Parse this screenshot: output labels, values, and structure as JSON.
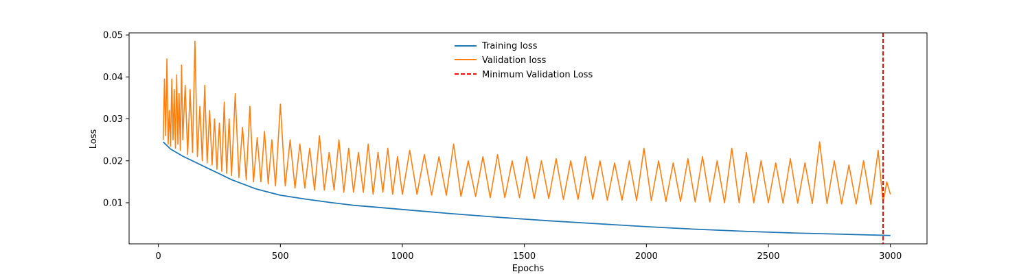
{
  "chart_data": {
    "type": "line",
    "title": "",
    "xlabel": "Epochs",
    "ylabel": "Loss",
    "xlim": [
      -120,
      3150
    ],
    "ylim": [
      0.0002,
      0.0505
    ],
    "x_ticks": [
      0,
      500,
      1000,
      1500,
      2000,
      2500,
      3000
    ],
    "y_ticks": [
      0.01,
      0.02,
      0.03,
      0.04,
      0.05
    ],
    "x_tick_labels": [
      "0",
      "500",
      "1000",
      "1500",
      "2000",
      "2500",
      "3000"
    ],
    "y_tick_labels": [
      "0.01",
      "0.02",
      "0.03",
      "0.04",
      "0.05"
    ],
    "grid": false,
    "legend": {
      "placement": "top-center",
      "entries": [
        "Training loss",
        "Validation loss",
        "Minimum Validation Loss"
      ]
    },
    "series": [
      {
        "name": "Training loss",
        "color": "#1f77b4",
        "style": "solid",
        "x": [
          20,
          50,
          100,
          150,
          200,
          250,
          300,
          400,
          500,
          600,
          700,
          800,
          900,
          1000,
          1200,
          1400,
          1600,
          1800,
          2000,
          2200,
          2400,
          2600,
          2800,
          3000
        ],
        "values": [
          0.0245,
          0.0228,
          0.0211,
          0.0197,
          0.0183,
          0.0169,
          0.0155,
          0.0133,
          0.0118,
          0.0109,
          0.0101,
          0.0094,
          0.0089,
          0.0084,
          0.0074,
          0.0065,
          0.0057,
          0.005,
          0.0043,
          0.0037,
          0.0032,
          0.0028,
          0.0025,
          0.0022
        ]
      },
      {
        "name": "Validation loss",
        "color": "#ff7f0e",
        "style": "solid",
        "x": [
          20,
          25,
          30,
          35,
          40,
          45,
          50,
          55,
          60,
          65,
          70,
          75,
          80,
          85,
          90,
          95,
          100,
          110,
          120,
          130,
          140,
          150,
          160,
          170,
          180,
          190,
          200,
          210,
          220,
          230,
          240,
          250,
          260,
          270,
          280,
          290,
          300,
          315,
          330,
          345,
          360,
          375,
          390,
          405,
          420,
          435,
          450,
          465,
          480,
          500,
          520,
          540,
          560,
          580,
          600,
          620,
          640,
          660,
          680,
          700,
          720,
          740,
          760,
          780,
          800,
          820,
          840,
          860,
          880,
          900,
          920,
          940,
          960,
          980,
          1000,
          1030,
          1060,
          1090,
          1120,
          1150,
          1180,
          1210,
          1240,
          1270,
          1300,
          1330,
          1360,
          1390,
          1420,
          1450,
          1480,
          1510,
          1540,
          1570,
          1600,
          1630,
          1660,
          1690,
          1720,
          1750,
          1780,
          1810,
          1840,
          1870,
          1900,
          1930,
          1960,
          1990,
          2020,
          2050,
          2080,
          2110,
          2140,
          2170,
          2200,
          2230,
          2260,
          2290,
          2320,
          2350,
          2380,
          2410,
          2440,
          2470,
          2500,
          2530,
          2560,
          2590,
          2620,
          2650,
          2680,
          2710,
          2740,
          2770,
          2800,
          2830,
          2860,
          2890,
          2920,
          2950,
          2970,
          2985,
          3000
        ],
        "values": [
          0.025,
          0.0395,
          0.026,
          0.0443,
          0.024,
          0.032,
          0.0235,
          0.0395,
          0.025,
          0.037,
          0.023,
          0.0405,
          0.024,
          0.036,
          0.0225,
          0.0428,
          0.025,
          0.038,
          0.0215,
          0.037,
          0.022,
          0.0485,
          0.021,
          0.033,
          0.02,
          0.038,
          0.0195,
          0.032,
          0.019,
          0.03,
          0.018,
          0.029,
          0.0175,
          0.034,
          0.017,
          0.03,
          0.0165,
          0.036,
          0.016,
          0.028,
          0.0155,
          0.033,
          0.015,
          0.0255,
          0.015,
          0.027,
          0.0145,
          0.025,
          0.014,
          0.0335,
          0.014,
          0.025,
          0.0135,
          0.024,
          0.0135,
          0.023,
          0.013,
          0.026,
          0.013,
          0.022,
          0.013,
          0.025,
          0.0125,
          0.023,
          0.0125,
          0.022,
          0.0125,
          0.024,
          0.012,
          0.022,
          0.0125,
          0.023,
          0.012,
          0.021,
          0.012,
          0.0225,
          0.012,
          0.0215,
          0.0118,
          0.021,
          0.0118,
          0.024,
          0.0115,
          0.02,
          0.0115,
          0.021,
          0.0112,
          0.0215,
          0.0112,
          0.02,
          0.0112,
          0.021,
          0.011,
          0.02,
          0.011,
          0.0205,
          0.0108,
          0.02,
          0.0108,
          0.021,
          0.0108,
          0.02,
          0.0106,
          0.0195,
          0.0106,
          0.02,
          0.0105,
          0.023,
          0.0105,
          0.02,
          0.0103,
          0.0195,
          0.0103,
          0.0205,
          0.0102,
          0.021,
          0.0102,
          0.02,
          0.01,
          0.023,
          0.01,
          0.022,
          0.01,
          0.02,
          0.01,
          0.0195,
          0.0099,
          0.0205,
          0.0099,
          0.0195,
          0.0098,
          0.0245,
          0.0098,
          0.02,
          0.0097,
          0.019,
          0.0097,
          0.02,
          0.0096,
          0.0225,
          0.01,
          0.015,
          0.012
        ]
      },
      {
        "name": "Minimum Validation Loss",
        "color": "#ff0000",
        "style": "dashed",
        "x": [
          2970
        ]
      }
    ]
  }
}
